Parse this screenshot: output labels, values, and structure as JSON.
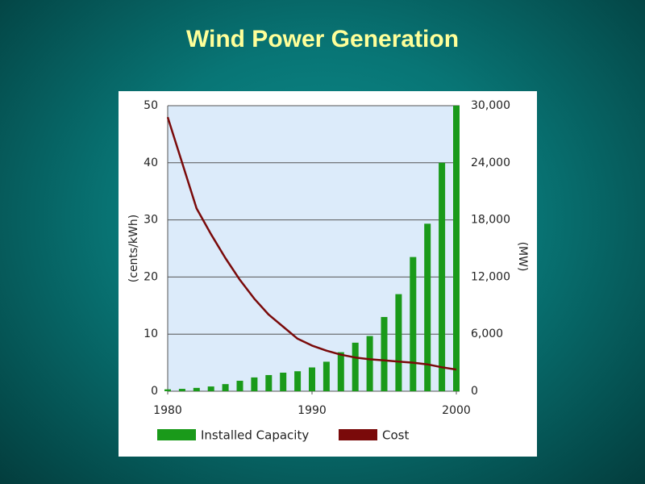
{
  "chart_data": {
    "type": "bar-line",
    "title": "Wind Power Generation",
    "y_label": "(cents/kWh)",
    "y2_label": "(MW)",
    "x": [
      1980,
      1981,
      1982,
      1983,
      1984,
      1985,
      1986,
      1987,
      1988,
      1989,
      1990,
      1991,
      1992,
      1993,
      1994,
      1995,
      1996,
      1997,
      1998,
      1999,
      2000
    ],
    "xlim": [
      1980,
      2000
    ],
    "xticks": [
      1980,
      1990,
      2000
    ],
    "ylim": [
      0,
      50
    ],
    "yticks": [
      0,
      10,
      20,
      30,
      40,
      50
    ],
    "y2lim": [
      0,
      30000
    ],
    "y2ticks": [
      0,
      {
        "value": 6000,
        "label": "6,000"
      },
      {
        "value": 12000,
        "label": "12,000"
      },
      {
        "value": 18000,
        "label": "18,000"
      },
      {
        "value": 24000,
        "label": "24,000"
      },
      {
        "value": 30000,
        "label": "30,000"
      }
    ],
    "grid": true,
    "legend": "bottom",
    "series": [
      {
        "name": "Installed Capacity",
        "color": "#1a9a1a",
        "kind": "bar",
        "axis": "y2",
        "values": [
          200,
          250,
          350,
          500,
          750,
          1100,
          1450,
          1700,
          1950,
          2100,
          2500,
          3100,
          4100,
          5100,
          5800,
          7800,
          10200,
          14100,
          17600,
          24000,
          30000
        ]
      },
      {
        "name": "Cost",
        "color": "#7a0a0a",
        "kind": "line",
        "axis": "y",
        "values": [
          48,
          40,
          32,
          27.5,
          23.3,
          19.5,
          16.2,
          13.4,
          11.3,
          9.2,
          8,
          7.1,
          6.4,
          5.9,
          5.6,
          5.4,
          5.2,
          5,
          4.7,
          4.2,
          3.8
        ]
      }
    ]
  }
}
